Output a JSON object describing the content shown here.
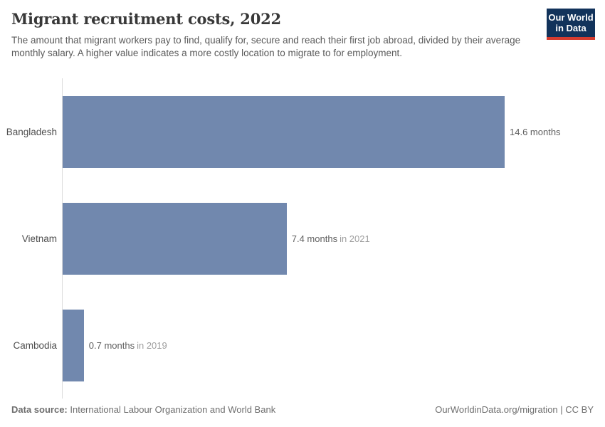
{
  "header": {
    "title": "Migrant recruitment costs, 2022",
    "subtitle": "The amount that migrant workers pay to find, qualify for, secure and reach their first job abroad, divided by their average monthly salary. A higher value indicates a more costly location to migrate to for employment.",
    "logo": {
      "line1": "Our World",
      "line2": "in Data",
      "bg_color": "#12335b",
      "accent_color": "#d63c2f"
    }
  },
  "chart_data": {
    "type": "bar",
    "orientation": "horizontal",
    "title": "Migrant recruitment costs, 2022",
    "categories": [
      "Bangladesh",
      "Vietnam",
      "Cambodia"
    ],
    "values": [
      14.6,
      7.4,
      0.7
    ],
    "unit": "months",
    "value_labels": [
      "14.6 months",
      "7.4 months",
      "0.7 months"
    ],
    "year_notes": [
      "",
      "in 2021",
      "in 2019"
    ],
    "xlim": [
      0,
      14.6
    ],
    "bar_color": "#7188ae",
    "grid": false,
    "legend": "none",
    "axis_line_color": "#dcdcdc"
  },
  "footer": {
    "source_label": "Data source:",
    "source_text": " International Labour Organization and World Bank",
    "right_text": "OurWorldinData.org/migration | CC BY"
  }
}
